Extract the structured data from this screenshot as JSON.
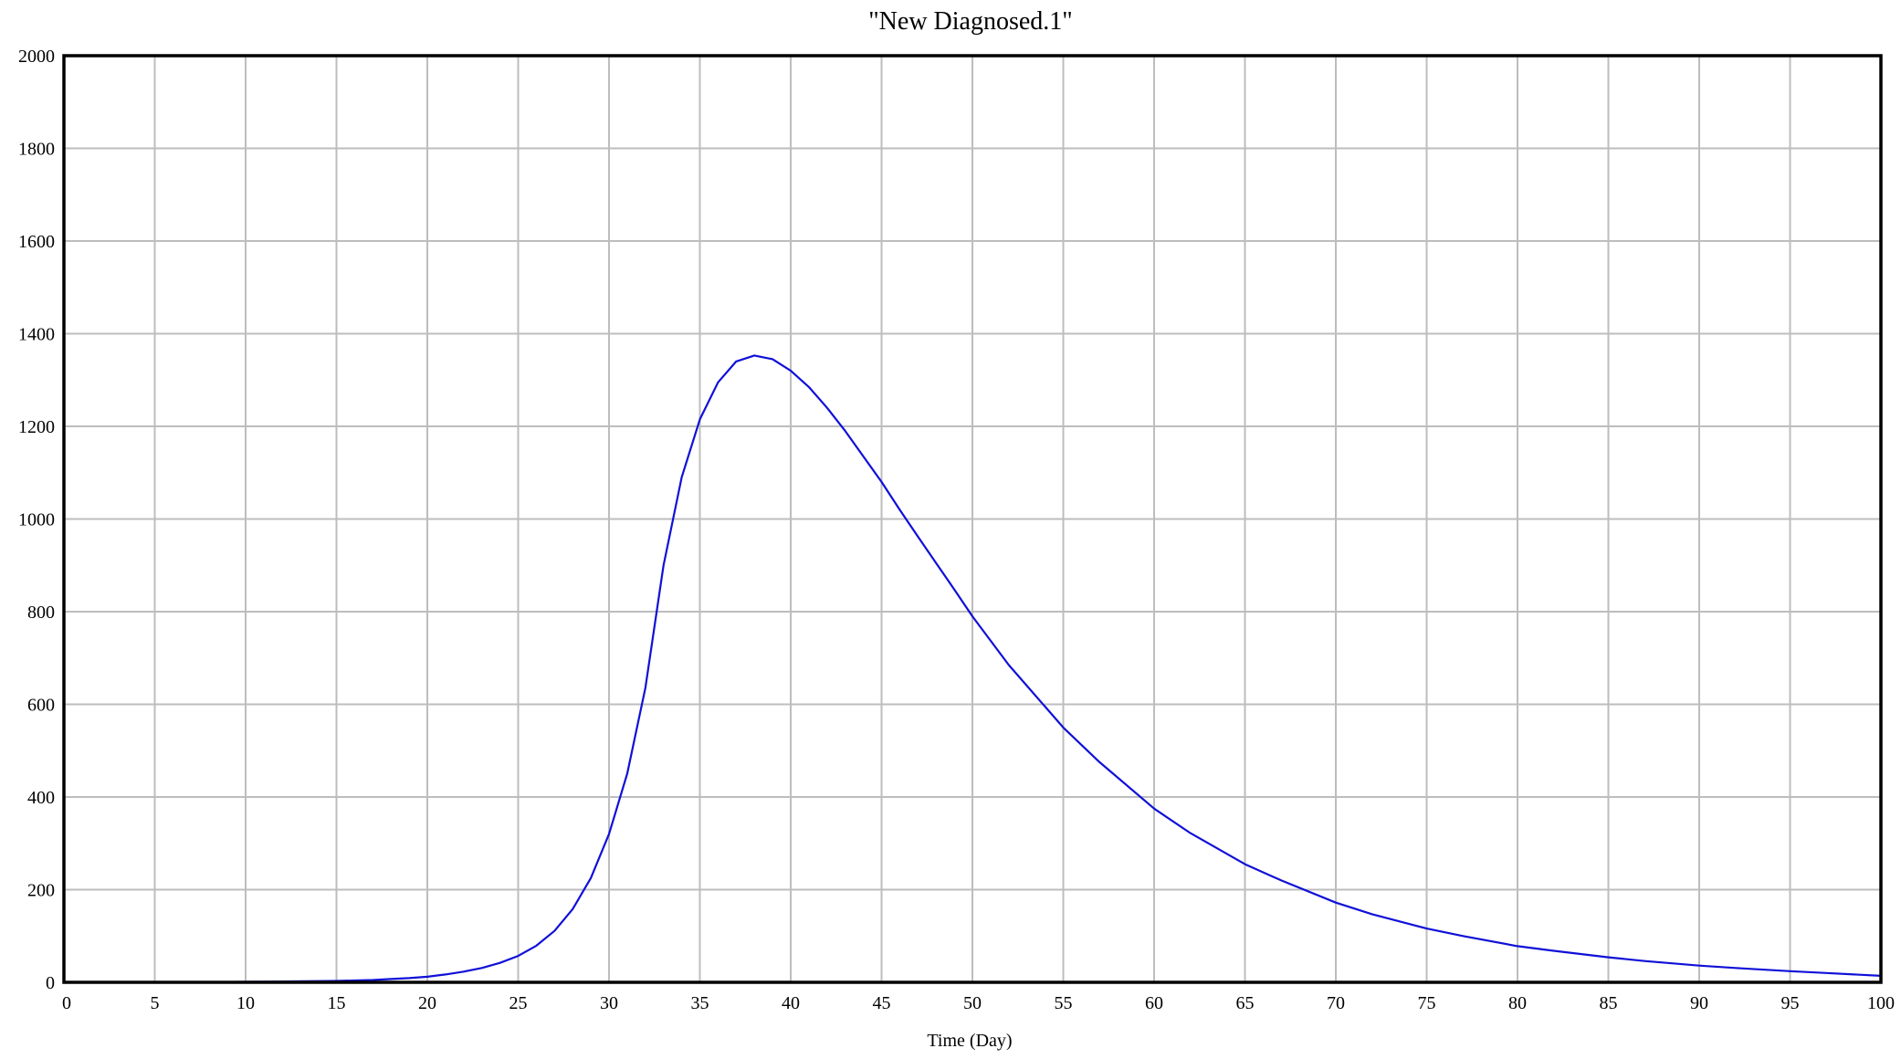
{
  "chart_data": {
    "type": "line",
    "title": "\"New Diagnosed.1\"",
    "xlabel": "Time (Day)",
    "ylabel": "",
    "xlim": [
      0,
      100
    ],
    "ylim": [
      0,
      2000
    ],
    "x_ticks": [
      0,
      5,
      10,
      15,
      20,
      25,
      30,
      35,
      40,
      45,
      50,
      55,
      60,
      65,
      70,
      75,
      80,
      85,
      90,
      95,
      100
    ],
    "y_ticks": [
      0,
      200,
      400,
      600,
      800,
      1000,
      1200,
      1400,
      1600,
      1800,
      2000
    ],
    "grid": true,
    "series": [
      {
        "color": "#1010d8",
        "x": [
          0,
          5,
          10,
          15,
          16,
          17,
          18,
          19,
          20,
          21,
          22,
          23,
          24,
          25,
          26,
          27,
          28,
          29,
          30,
          31,
          32,
          33,
          34,
          35,
          36,
          37,
          38,
          39,
          40,
          41,
          42,
          43,
          44,
          45,
          46,
          47,
          48,
          49,
          50,
          52,
          55,
          57,
          60,
          62,
          65,
          67,
          70,
          72,
          75,
          77,
          80,
          82,
          85,
          87,
          90,
          92,
          95,
          97,
          100
        ],
        "y": [
          0,
          0,
          1,
          3,
          4,
          5,
          7,
          9,
          12,
          17,
          23,
          31,
          42,
          57,
          79,
          111,
          158,
          225,
          320,
          450,
          635,
          900,
          1090,
          1215,
          1295,
          1340,
          1353,
          1345,
          1320,
          1285,
          1240,
          1190,
          1135,
          1080,
          1020,
          962,
          905,
          848,
          790,
          685,
          550,
          475,
          375,
          322,
          255,
          220,
          172,
          147,
          116,
          100,
          78,
          68,
          54,
          46,
          36,
          31,
          24,
          20,
          14
        ]
      }
    ]
  }
}
